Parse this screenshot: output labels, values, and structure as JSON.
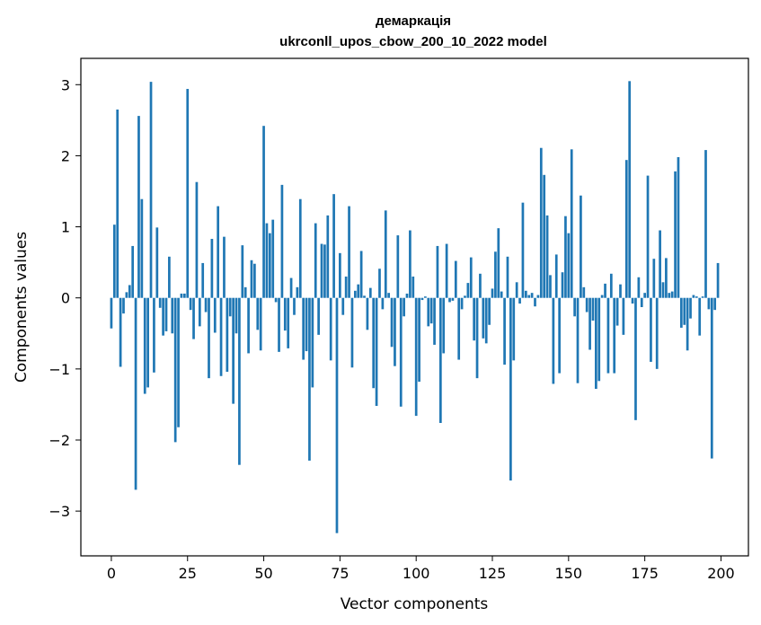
{
  "chart_data": {
    "type": "bar",
    "title_line1": "демаркація",
    "title_line2": "ukrconll_upos_cbow_200_10_2022 model",
    "xlabel": "Vector components",
    "ylabel": "Components values",
    "xlim": [
      -10,
      209
    ],
    "ylim": [
      -3.63,
      3.37
    ],
    "xticks": [
      0,
      25,
      50,
      75,
      100,
      125,
      150,
      175,
      200
    ],
    "yticks": [
      -3,
      -2,
      -1,
      0,
      1,
      2,
      3
    ],
    "ytick_labels": [
      "−3",
      "−2",
      "−1",
      "0",
      "1",
      "2",
      "3"
    ],
    "bar_color": "#1f77b4",
    "grid": false,
    "values": [
      -0.43,
      1.03,
      2.65,
      -0.97,
      -0.22,
      0.08,
      0.18,
      0.73,
      -2.7,
      2.56,
      1.39,
      -1.35,
      -1.26,
      3.04,
      -1.05,
      0.99,
      -0.14,
      -0.53,
      -0.47,
      0.58,
      -0.5,
      -2.03,
      -1.82,
      0.06,
      0.06,
      2.94,
      -0.17,
      -0.58,
      1.63,
      -0.4,
      0.49,
      -0.2,
      -1.13,
      0.83,
      -0.49,
      1.29,
      -1.1,
      0.86,
      -1.04,
      -0.26,
      -1.49,
      -0.5,
      -2.35,
      0.74,
      0.15,
      -0.78,
      0.53,
      0.48,
      -0.45,
      -0.74,
      2.42,
      1.05,
      0.91,
      1.1,
      -0.06,
      -0.76,
      1.59,
      -0.46,
      -0.71,
      0.28,
      -0.24,
      0.15,
      1.39,
      -0.87,
      -0.75,
      -2.29,
      -1.26,
      1.05,
      -0.52,
      0.76,
      0.75,
      1.16,
      -0.88,
      1.46,
      -3.31,
      0.63,
      -0.24,
      0.3,
      1.29,
      -0.98,
      0.1,
      0.19,
      0.66,
      0.03,
      -0.45,
      0.14,
      -1.27,
      -1.52,
      0.41,
      -0.16,
      1.23,
      0.07,
      -0.69,
      -0.96,
      0.88,
      -1.53,
      -0.26,
      0.06,
      0.95,
      0.3,
      -1.66,
      -1.18,
      -0.03,
      0.02,
      -0.4,
      -0.36,
      -0.66,
      0.73,
      -1.76,
      -0.78,
      0.76,
      -0.06,
      -0.04,
      0.52,
      -0.87,
      -0.16,
      0.03,
      0.21,
      0.57,
      -0.6,
      -1.13,
      0.34,
      -0.57,
      -0.64,
      -0.38,
      0.13,
      0.65,
      0.98,
      0.09,
      -0.94,
      0.58,
      -2.57,
      -0.88,
      0.22,
      -0.08,
      1.34,
      0.1,
      0.04,
      0.07,
      -0.12,
      0.04,
      2.11,
      1.73,
      1.16,
      0.32,
      -1.21,
      0.61,
      -1.06,
      0.36,
      1.15,
      0.91,
      2.09,
      -0.26,
      -1.2,
      1.44,
      0.15,
      -0.2,
      -0.73,
      -0.32,
      -1.28,
      -1.17,
      0.04,
      0.2,
      -1.06,
      0.34,
      -1.06,
      -0.39,
      0.19,
      -0.52,
      1.94,
      3.05,
      -0.08,
      -1.72,
      0.29,
      -0.13,
      0.07,
      1.72,
      -0.9,
      0.55,
      -1.0,
      0.95,
      0.22,
      0.56,
      0.07,
      0.09,
      1.78,
      1.98,
      -0.42,
      -0.38,
      -0.74,
      -0.29,
      0.04,
      0.02,
      -0.53,
      0.02,
      2.08,
      -0.16,
      -2.26,
      -0.17,
      0.49
    ]
  }
}
